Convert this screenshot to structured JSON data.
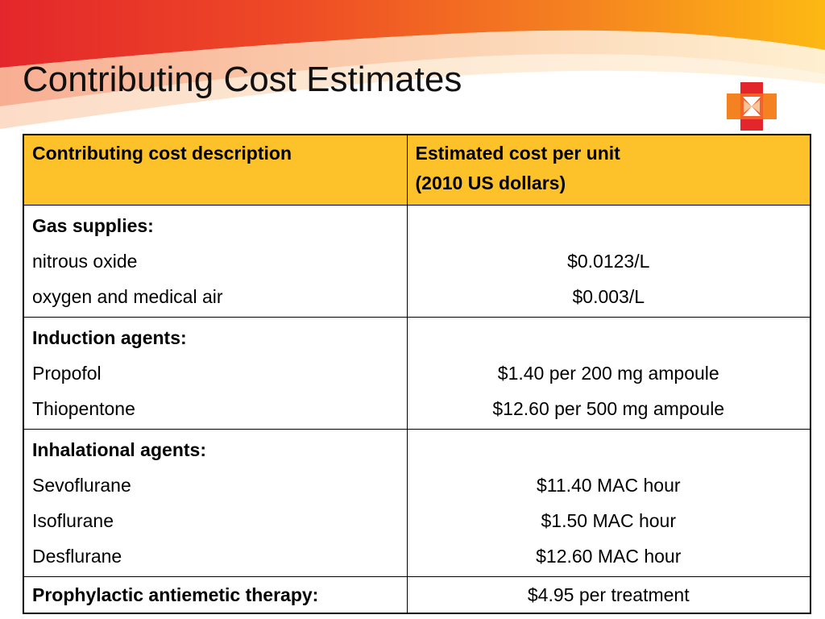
{
  "title": "Contributing Cost Estimates",
  "colors": {
    "header_fill": "#fdc12a",
    "swoosh_red": "#e3262b",
    "swoosh_orange": "#f58220",
    "swoosh_yellow": "#fdb913"
  },
  "logo_icon": "cross-logo-icon",
  "table": {
    "headers": {
      "description": "Contributing cost description",
      "cost_line1": "Estimated cost per unit",
      "cost_line2": "(2010 US dollars)"
    },
    "groups": [
      {
        "category": "Gas supplies:",
        "items": [
          {
            "name": "nitrous oxide",
            "cost": "$0.0123/L"
          },
          {
            "name": "oxygen and medical air",
            "cost": "$0.003/L"
          }
        ]
      },
      {
        "category": "Induction agents:",
        "items": [
          {
            "name": "Propofol",
            "cost": "$1.40 per 200 mg ampoule"
          },
          {
            "name": "Thiopentone",
            "cost": "$12.60 per 500 mg ampoule"
          }
        ]
      },
      {
        "category": "Inhalational agents:",
        "items": [
          {
            "name": "Sevoflurane",
            "cost": "$11.40 MAC hour"
          },
          {
            "name": "Isoflurane",
            "cost": "$1.50 MAC hour"
          },
          {
            "name": "Desflurane",
            "cost": "$12.60 MAC hour"
          }
        ]
      },
      {
        "category": "Prophylactic antiemetic therapy:",
        "cost": "$4.95 per treatment",
        "items": []
      }
    ]
  }
}
